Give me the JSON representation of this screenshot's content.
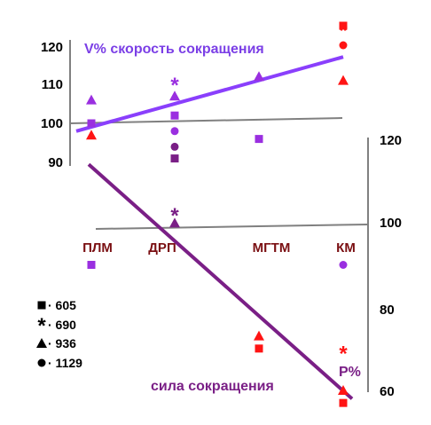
{
  "chart_data": [
    {
      "type": "scatter",
      "title": "V% скорость сокращения",
      "categories": [
        "ПЛМ",
        "ДРП",
        "МГТМ",
        "КМ"
      ],
      "ylim": [
        90,
        120
      ],
      "yticks": [
        "90",
        "100",
        "110",
        "120"
      ],
      "colors": {
        "line": "#8a3ffc",
        "axis": "#808080",
        "sq": "#9a2fe0",
        "red": "#ff1414"
      },
      "series": [
        {
          "name": "605",
          "marker": "square",
          "values": [
            100,
            102,
            96,
            125
          ]
        },
        {
          "name": "690",
          "marker": "star",
          "values": [
            null,
            110,
            null,
            124
          ]
        },
        {
          "name": "936",
          "marker": "triangle",
          "values": [
            106,
            107,
            112,
            111
          ]
        },
        {
          "name": "1129",
          "marker": "circle",
          "values": [
            null,
            98,
            null,
            120
          ]
        }
      ],
      "extra_points": [
        {
          "category": "ПЛМ",
          "marker": "triangle",
          "value": 97,
          "color": "red"
        },
        {
          "category": "ДРП",
          "marker": "circle",
          "value": 94,
          "color": "darkpurple"
        },
        {
          "category": "ДРП",
          "marker": "square",
          "value": 91,
          "color": "darkpurple"
        }
      ],
      "trend": {
        "from": 98,
        "to": 117
      }
    },
    {
      "type": "scatter",
      "title": "сила сокращения",
      "axis_label": "P%",
      "categories": [
        "ПЛМ",
        "ДРП",
        "МГТМ",
        "КМ"
      ],
      "ylim": [
        60,
        120
      ],
      "yticks": [
        "60",
        "80",
        "100",
        "120"
      ],
      "colors": {
        "line": "#7a1f86",
        "axis": "#808080",
        "red": "#ff1414"
      },
      "points": [
        {
          "category": "ПЛМ",
          "marker": "square",
          "value": 90,
          "color": "purple"
        },
        {
          "category": "ДРП",
          "marker": "star",
          "value": 102,
          "color": "darkpurple"
        },
        {
          "category": "ДРП",
          "marker": "triangle",
          "value": 100,
          "color": "darkpurple"
        },
        {
          "category": "МГТМ",
          "marker": "triangle",
          "value": 73,
          "color": "red"
        },
        {
          "category": "МГТМ",
          "marker": "square",
          "value": 70,
          "color": "red"
        },
        {
          "category": "КМ",
          "marker": "circle",
          "value": 90,
          "color": "purple"
        },
        {
          "category": "КМ",
          "marker": "star",
          "value": 69,
          "color": "red"
        },
        {
          "category": "КМ",
          "marker": "triangle",
          "value": 60,
          "color": "red"
        },
        {
          "category": "КМ",
          "marker": "square",
          "value": 57,
          "color": "red"
        }
      ],
      "trend": {
        "from": 114,
        "to": 58
      }
    }
  ],
  "legend": [
    {
      "marker": "square",
      "label": "· 605"
    },
    {
      "marker": "star",
      "label": "· 690"
    },
    {
      "marker": "triangle",
      "label": "· 936"
    },
    {
      "marker": "circle",
      "label": "· 1129"
    }
  ]
}
